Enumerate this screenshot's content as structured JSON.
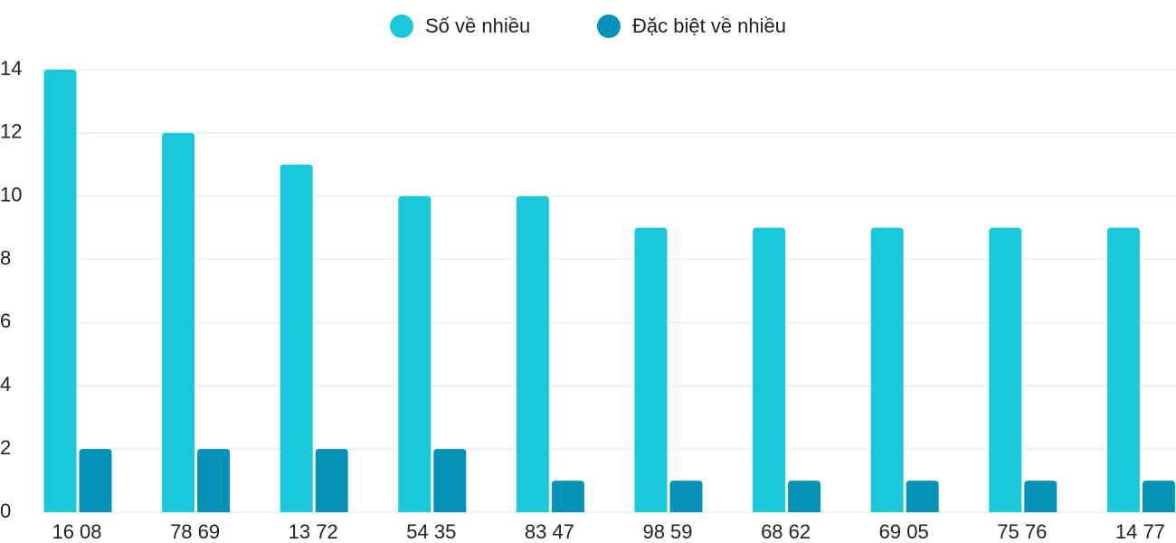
{
  "chart_data": {
    "type": "bar",
    "categories": [
      "16 08",
      "78 69",
      "13 72",
      "54 35",
      "83 47",
      "98 59",
      "68 62",
      "69 05",
      "75 76",
      "14 77"
    ],
    "series": [
      {
        "name": "Số về nhiều",
        "color": "#1ac8db",
        "values": [
          14,
          12,
          11,
          10,
          10,
          9,
          9,
          9,
          9,
          9
        ]
      },
      {
        "name": "Đặc biệt về nhiều",
        "color": "#0592b7",
        "values": [
          2,
          2,
          2,
          2,
          1,
          1,
          1,
          1,
          1,
          1
        ]
      }
    ],
    "ylim": [
      0,
      14
    ],
    "yticks": [
      0,
      2,
      4,
      6,
      8,
      10,
      12,
      14
    ],
    "grid": true,
    "legend": "top"
  }
}
